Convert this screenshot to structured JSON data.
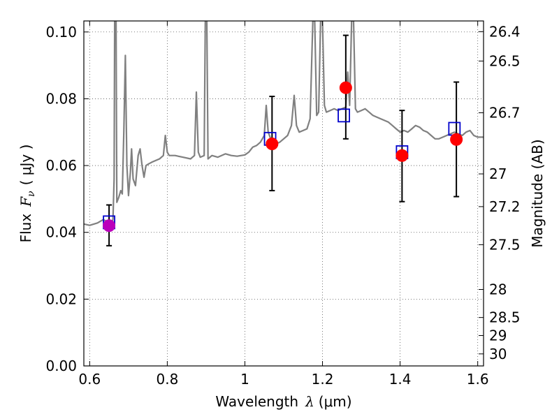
{
  "chart_data": {
    "type": "scatter",
    "xlabel": {
      "text": "Wavelength",
      "var": "λ",
      "unit": "(μm)"
    },
    "ylabel": {
      "text": "Flux",
      "var": "F",
      "sub": "ν",
      "unit": "( μJy )"
    },
    "ylabel_right": "Magnitude (AB)",
    "xlim": [
      0.585,
      1.615
    ],
    "ylim": [
      0.0,
      0.1033
    ],
    "grid": true,
    "x_ticks": [
      {
        "value": 0.6,
        "label": "0.6"
      },
      {
        "value": 0.8,
        "label": "0.8"
      },
      {
        "value": 1.0,
        "label": "1"
      },
      {
        "value": 1.2,
        "label": "1.2"
      },
      {
        "value": 1.4,
        "label": "1.4"
      },
      {
        "value": 1.6,
        "label": "1.6"
      }
    ],
    "y_ticks": [
      {
        "value": 0.0,
        "label": "0.00"
      },
      {
        "value": 0.02,
        "label": "0.02"
      },
      {
        "value": 0.04,
        "label": "0.04"
      },
      {
        "value": 0.06,
        "label": "0.06"
      },
      {
        "value": 0.08,
        "label": "0.08"
      },
      {
        "value": 0.1,
        "label": "0.10"
      }
    ],
    "right_ticks": [
      {
        "flux": 0.1001,
        "label": "26.4"
      },
      {
        "flux": 0.0913,
        "label": "26.5"
      },
      {
        "flux": 0.0758,
        "label": "26.7"
      },
      {
        "flux": 0.0575,
        "label": "27"
      },
      {
        "flux": 0.0477,
        "label": "27.2"
      },
      {
        "flux": 0.0363,
        "label": "27.5"
      },
      {
        "flux": 0.0229,
        "label": "28"
      },
      {
        "flux": 0.0145,
        "label": "28.5"
      },
      {
        "flux": 0.0091,
        "label": "29"
      },
      {
        "flux": 0.0036,
        "label": "30"
      }
    ],
    "series": [
      {
        "kind": "spectrum",
        "color": "#808080",
        "points": [
          [
            0.585,
            0.0425
          ],
          [
            0.6,
            0.0421
          ],
          [
            0.62,
            0.0428
          ],
          [
            0.635,
            0.0438
          ],
          [
            0.645,
            0.0432
          ],
          [
            0.652,
            0.0425
          ],
          [
            0.655,
            0.0405
          ],
          [
            0.66,
            0.044
          ],
          [
            0.663,
            0.056
          ],
          [
            0.6645,
            0.1033
          ],
          [
            0.668,
            0.1033
          ],
          [
            0.67,
            0.049
          ],
          [
            0.675,
            0.0505
          ],
          [
            0.68,
            0.0525
          ],
          [
            0.684,
            0.0515
          ],
          [
            0.688,
            0.07
          ],
          [
            0.692,
            0.093
          ],
          [
            0.696,
            0.06
          ],
          [
            0.7,
            0.051
          ],
          [
            0.705,
            0.058
          ],
          [
            0.708,
            0.065
          ],
          [
            0.712,
            0.056
          ],
          [
            0.718,
            0.054
          ],
          [
            0.725,
            0.063
          ],
          [
            0.73,
            0.065
          ],
          [
            0.735,
            0.06
          ],
          [
            0.74,
            0.0565
          ],
          [
            0.745,
            0.06
          ],
          [
            0.752,
            0.0605
          ],
          [
            0.76,
            0.061
          ],
          [
            0.77,
            0.0615
          ],
          [
            0.78,
            0.062
          ],
          [
            0.79,
            0.063
          ],
          [
            0.795,
            0.069
          ],
          [
            0.8,
            0.064
          ],
          [
            0.805,
            0.063
          ],
          [
            0.82,
            0.063
          ],
          [
            0.84,
            0.0625
          ],
          [
            0.86,
            0.062
          ],
          [
            0.87,
            0.063
          ],
          [
            0.875,
            0.082
          ],
          [
            0.88,
            0.064
          ],
          [
            0.885,
            0.0625
          ],
          [
            0.895,
            0.063
          ],
          [
            0.898,
            0.1033
          ],
          [
            0.902,
            0.1033
          ],
          [
            0.905,
            0.062
          ],
          [
            0.915,
            0.063
          ],
          [
            0.93,
            0.0625
          ],
          [
            0.95,
            0.0635
          ],
          [
            0.965,
            0.063
          ],
          [
            0.98,
            0.0628
          ],
          [
            1.0,
            0.0632
          ],
          [
            1.01,
            0.064
          ],
          [
            1.02,
            0.0655
          ],
          [
            1.03,
            0.066
          ],
          [
            1.04,
            0.067
          ],
          [
            1.05,
            0.069
          ],
          [
            1.055,
            0.078
          ],
          [
            1.06,
            0.07
          ],
          [
            1.07,
            0.067
          ],
          [
            1.08,
            0.0665
          ],
          [
            1.09,
            0.067
          ],
          [
            1.1,
            0.068
          ],
          [
            1.11,
            0.069
          ],
          [
            1.12,
            0.072
          ],
          [
            1.127,
            0.081
          ],
          [
            1.133,
            0.072
          ],
          [
            1.14,
            0.07
          ],
          [
            1.15,
            0.0705
          ],
          [
            1.16,
            0.071
          ],
          [
            1.168,
            0.074
          ],
          [
            1.175,
            0.1033
          ],
          [
            1.18,
            0.1033
          ],
          [
            1.185,
            0.075
          ],
          [
            1.19,
            0.076
          ],
          [
            1.195,
            0.1033
          ],
          [
            1.2,
            0.1033
          ],
          [
            1.205,
            0.078
          ],
          [
            1.21,
            0.076
          ],
          [
            1.22,
            0.0765
          ],
          [
            1.23,
            0.077
          ],
          [
            1.24,
            0.0765
          ],
          [
            1.25,
            0.077
          ],
          [
            1.26,
            0.0775
          ],
          [
            1.265,
            0.088
          ],
          [
            1.27,
            0.078
          ],
          [
            1.275,
            0.1033
          ],
          [
            1.28,
            0.1033
          ],
          [
            1.285,
            0.077
          ],
          [
            1.29,
            0.076
          ],
          [
            1.3,
            0.0765
          ],
          [
            1.31,
            0.077
          ],
          [
            1.32,
            0.076
          ],
          [
            1.33,
            0.075
          ],
          [
            1.34,
            0.0745
          ],
          [
            1.35,
            0.074
          ],
          [
            1.36,
            0.0735
          ],
          [
            1.37,
            0.073
          ],
          [
            1.38,
            0.072
          ],
          [
            1.39,
            0.071
          ],
          [
            1.4,
            0.07
          ],
          [
            1.41,
            0.0705
          ],
          [
            1.42,
            0.07
          ],
          [
            1.43,
            0.071
          ],
          [
            1.44,
            0.072
          ],
          [
            1.45,
            0.0715
          ],
          [
            1.46,
            0.0705
          ],
          [
            1.47,
            0.07
          ],
          [
            1.48,
            0.069
          ],
          [
            1.49,
            0.068
          ],
          [
            1.5,
            0.068
          ],
          [
            1.51,
            0.0685
          ],
          [
            1.52,
            0.069
          ],
          [
            1.53,
            0.0695
          ],
          [
            1.54,
            0.07
          ],
          [
            1.55,
            0.0695
          ],
          [
            1.56,
            0.069
          ],
          [
            1.57,
            0.07
          ],
          [
            1.58,
            0.0705
          ],
          [
            1.59,
            0.069
          ],
          [
            1.6,
            0.0685
          ],
          [
            1.615,
            0.0685
          ]
        ]
      },
      {
        "kind": "model_photometry",
        "marker": "square",
        "color": "#0000cc",
        "points": [
          [
            0.65,
            0.043
          ],
          [
            1.065,
            0.068
          ],
          [
            1.255,
            0.075
          ],
          [
            1.405,
            0.064
          ],
          [
            1.54,
            0.071
          ]
        ]
      },
      {
        "kind": "observed_photometry",
        "marker": "circle",
        "points": [
          {
            "x": 0.65,
            "y": 0.042,
            "err_low": 0.036,
            "err_high": 0.0482,
            "color": "#bb00bb"
          },
          {
            "x": 1.07,
            "y": 0.0665,
            "err_low": 0.0525,
            "err_high": 0.0807,
            "color": "#ff0000"
          },
          {
            "x": 1.26,
            "y": 0.0833,
            "err_low": 0.068,
            "err_high": 0.099,
            "color": "#ff0000"
          },
          {
            "x": 1.405,
            "y": 0.063,
            "err_low": 0.0492,
            "err_high": 0.0765,
            "color": "#ff0000"
          },
          {
            "x": 1.545,
            "y": 0.0678,
            "err_low": 0.0507,
            "err_high": 0.085,
            "color": "#ff0000"
          }
        ]
      }
    ]
  }
}
